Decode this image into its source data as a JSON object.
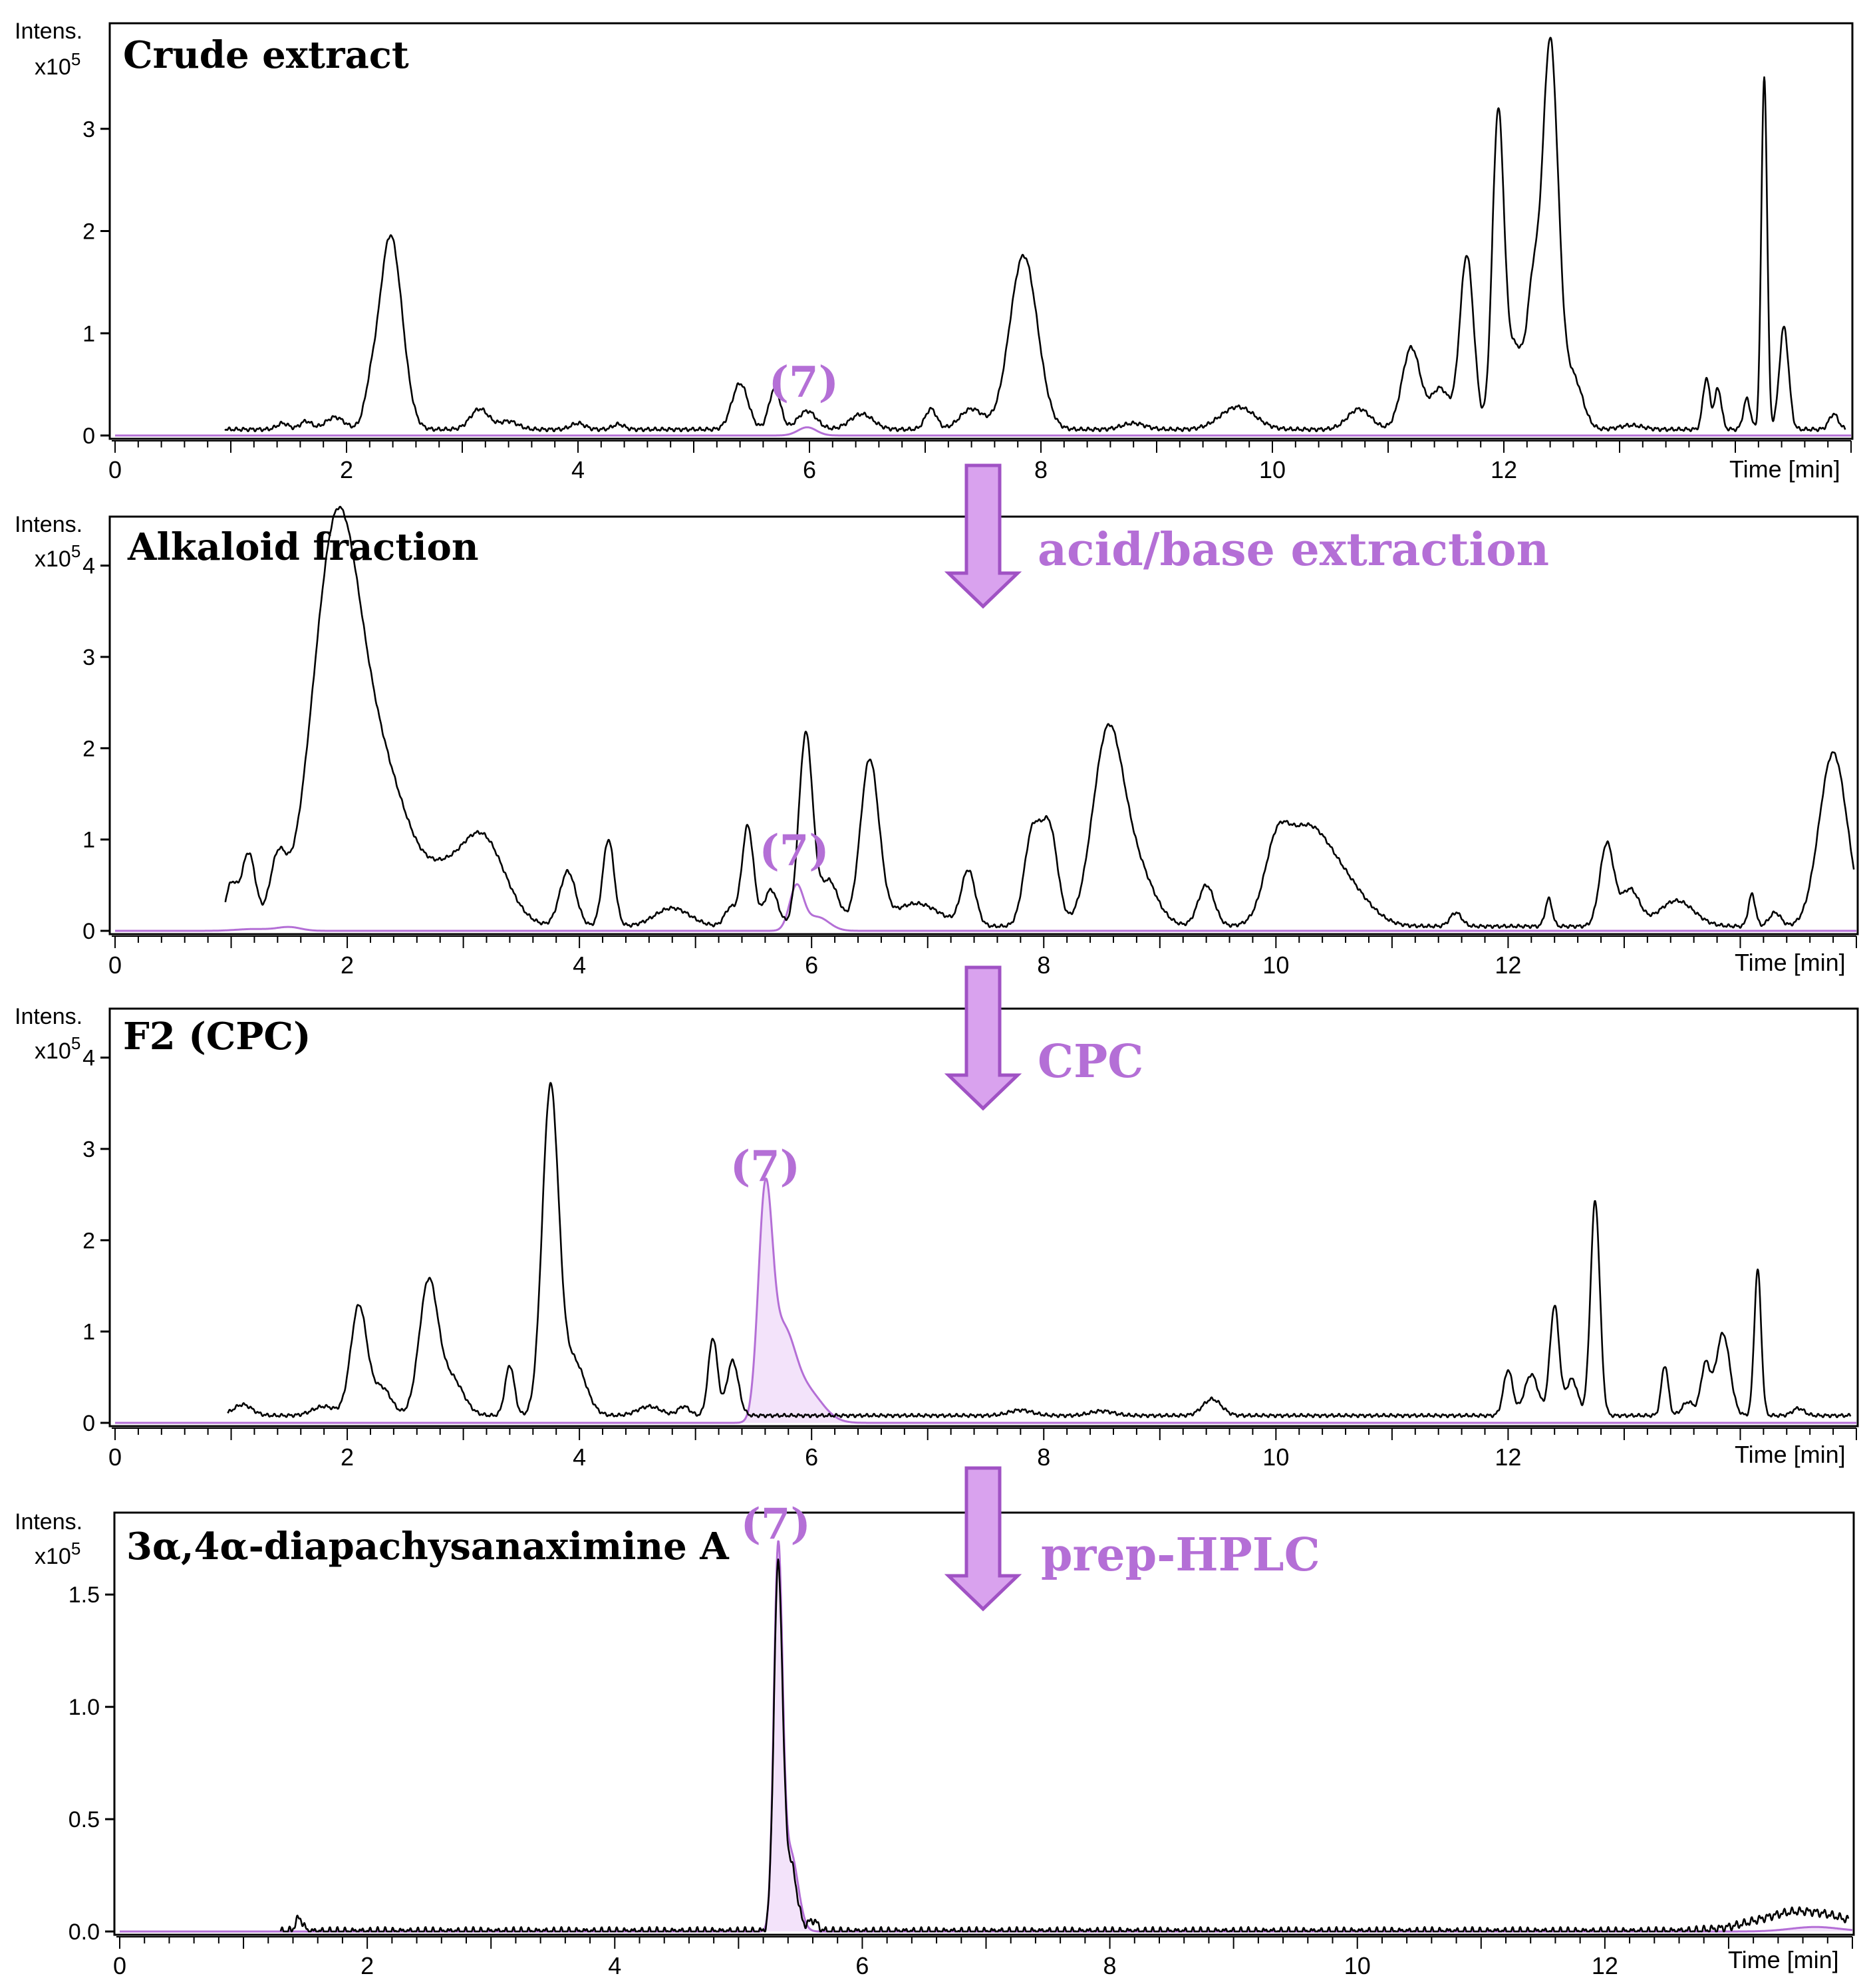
{
  "colors": {
    "trace": "#000000",
    "highlight": "#b46fd6",
    "highlight_fill": "#f3e3fa",
    "arrow_fill": "#d9a2ee",
    "arrow_stroke": "#a052c4"
  },
  "chart_data": [
    {
      "type": "line",
      "title": "Crude extract",
      "ylabel_line1": "Intens.",
      "ylabel_line2": "x10",
      "ylabel_exp": "5",
      "xlabel": "Time [min]",
      "xlim": [
        0,
        15
      ],
      "ylim": [
        0,
        4
      ],
      "x_ticks": [
        "0",
        "2",
        "4",
        "6",
        "8",
        "10",
        "12"
      ],
      "x_tick_values": [
        0,
        2,
        4,
        6,
        8,
        10,
        12
      ],
      "y_ticks": [
        "0",
        "1",
        "2",
        "3"
      ],
      "y_tick_values": [
        0,
        1,
        2,
        3
      ],
      "compound_label": "(7)",
      "compound_label_x": 5.95,
      "compound_label_y": 0.38,
      "series": [
        {
          "name": "total ion chromatogram",
          "color": "black",
          "fill": false,
          "baseline": 0.06,
          "x_start": 0.95,
          "x_end": 14.95,
          "peaks": [
            [
              1.45,
              0.06,
              0.05
            ],
            [
              1.65,
              0.08,
              0.05
            ],
            [
              1.9,
              0.12,
              0.08
            ],
            [
              2.2,
              0.2,
              0.05
            ],
            [
              2.38,
              1.9,
              0.1
            ],
            [
              3.15,
              0.2,
              0.08
            ],
            [
              3.4,
              0.08,
              0.08
            ],
            [
              4.0,
              0.06,
              0.06
            ],
            [
              4.35,
              0.05,
              0.05
            ],
            [
              5.4,
              0.45,
              0.07
            ],
            [
              5.7,
              0.4,
              0.05
            ],
            [
              5.98,
              0.18,
              0.08
            ],
            [
              6.45,
              0.15,
              0.1
            ],
            [
              7.05,
              0.2,
              0.05
            ],
            [
              7.4,
              0.2,
              0.1
            ],
            [
              7.85,
              1.7,
              0.12
            ],
            [
              8.8,
              0.06,
              0.1
            ],
            [
              9.7,
              0.22,
              0.15
            ],
            [
              10.75,
              0.2,
              0.1
            ],
            [
              11.2,
              0.8,
              0.08
            ],
            [
              11.45,
              0.4,
              0.08
            ],
            [
              11.68,
              1.7,
              0.06
            ],
            [
              11.95,
              3.0,
              0.05
            ],
            [
              12.1,
              0.8,
              0.08
            ],
            [
              12.25,
              1.1,
              0.05
            ],
            [
              12.4,
              3.8,
              0.07
            ],
            [
              12.6,
              0.5,
              0.08
            ],
            [
              13.1,
              0.04,
              0.1
            ],
            [
              13.75,
              0.5,
              0.03
            ],
            [
              13.85,
              0.4,
              0.03
            ],
            [
              14.1,
              0.3,
              0.03
            ],
            [
              14.25,
              3.45,
              0.025
            ],
            [
              14.42,
              1.0,
              0.04
            ],
            [
              14.85,
              0.15,
              0.04
            ]
          ]
        },
        {
          "name": "compound 7 EIC",
          "color": "purple",
          "fill": false,
          "baseline": 0.0,
          "x_start": 0.0,
          "x_end": 15.0,
          "peaks": [
            [
              5.98,
              0.08,
              0.08
            ]
          ]
        }
      ]
    },
    {
      "type": "line",
      "title": "Alkaloid fraction",
      "ylabel_line1": "Intens.",
      "ylabel_line2": "x10",
      "ylabel_exp": "5",
      "xlabel": "Time [min]",
      "xlim": [
        0,
        15
      ],
      "ylim": [
        0,
        4.5
      ],
      "x_ticks": [
        "0",
        "2",
        "4",
        "6",
        "8",
        "10",
        "12"
      ],
      "x_tick_values": [
        0,
        2,
        4,
        6,
        8,
        10,
        12
      ],
      "y_ticks": [
        "0",
        "1",
        "2",
        "3",
        "4"
      ],
      "y_tick_values": [
        0,
        1,
        2,
        3,
        4
      ],
      "compound_label": "(7)",
      "compound_label_x": 5.85,
      "compound_label_y": 0.72,
      "series": [
        {
          "name": "total ion chromatogram",
          "color": "black",
          "fill": false,
          "baseline": 0.05,
          "x_start": 0.95,
          "x_end": 14.98,
          "peaks": [
            [
              1.0,
              0.45,
              0.05
            ],
            [
              1.15,
              0.8,
              0.06
            ],
            [
              1.4,
              0.65,
              0.07
            ],
            [
              1.9,
              4.1,
              0.2
            ],
            [
              2.3,
              1.6,
              0.25
            ],
            [
              2.8,
              0.3,
              0.15
            ],
            [
              3.15,
              1.0,
              0.2
            ],
            [
              3.9,
              0.6,
              0.07
            ],
            [
              4.25,
              0.95,
              0.05
            ],
            [
              4.8,
              0.2,
              0.15
            ],
            [
              5.3,
              0.2,
              0.05
            ],
            [
              5.45,
              1.1,
              0.05
            ],
            [
              5.65,
              0.4,
              0.06
            ],
            [
              5.95,
              2.1,
              0.06
            ],
            [
              6.15,
              0.5,
              0.08
            ],
            [
              6.5,
              1.8,
              0.08
            ],
            [
              6.9,
              0.25,
              0.2
            ],
            [
              7.35,
              0.6,
              0.06
            ],
            [
              7.9,
              1.0,
              0.07
            ],
            [
              8.05,
              1.05,
              0.07
            ],
            [
              8.55,
              2.05,
              0.13
            ],
            [
              8.8,
              0.6,
              0.15
            ],
            [
              9.4,
              0.45,
              0.07
            ],
            [
              10.0,
              0.6,
              0.1
            ],
            [
              10.25,
              1.0,
              0.2
            ],
            [
              10.6,
              0.4,
              0.2
            ],
            [
              11.55,
              0.15,
              0.05
            ],
            [
              12.35,
              0.3,
              0.03
            ],
            [
              12.85,
              0.9,
              0.06
            ],
            [
              13.05,
              0.4,
              0.08
            ],
            [
              13.45,
              0.28,
              0.15
            ],
            [
              14.1,
              0.35,
              0.03
            ],
            [
              14.3,
              0.15,
              0.05
            ],
            [
              14.8,
              1.9,
              0.12
            ]
          ]
        },
        {
          "name": "compound 7 EIC",
          "color": "purple",
          "fill": false,
          "baseline": 0.0,
          "x_start": 0.0,
          "x_end": 15.0,
          "peaks": [
            [
              1.2,
              0.02,
              0.15
            ],
            [
              1.5,
              0.04,
              0.1
            ],
            [
              5.87,
              0.48,
              0.06
            ],
            [
              6.05,
              0.15,
              0.1
            ]
          ]
        }
      ]
    },
    {
      "type": "line",
      "title": "F2 (CPC)",
      "ylabel_line1": "Intens.",
      "ylabel_line2": "x10",
      "ylabel_exp": "5",
      "xlabel": "Time [min]",
      "xlim": [
        0,
        15
      ],
      "ylim": [
        0,
        4.5
      ],
      "x_ticks": [
        "0",
        "2",
        "4",
        "6",
        "8",
        "10",
        "12"
      ],
      "x_tick_values": [
        0,
        2,
        4,
        6,
        8,
        10,
        12
      ],
      "y_ticks": [
        "0",
        "1",
        "2",
        "3",
        "4"
      ],
      "y_tick_values": [
        0,
        1,
        2,
        3,
        4
      ],
      "compound_label": "(7)",
      "compound_label_x": 5.6,
      "compound_label_y": 2.65,
      "series": [
        {
          "name": "total ion chromatogram",
          "color": "black",
          "fill": false,
          "baseline": 0.08,
          "x_start": 0.97,
          "x_end": 14.95,
          "peaks": [
            [
              1.1,
              0.12,
              0.08
            ],
            [
              1.8,
              0.1,
              0.1
            ],
            [
              2.1,
              1.2,
              0.07
            ],
            [
              2.3,
              0.3,
              0.08
            ],
            [
              2.7,
              1.45,
              0.08
            ],
            [
              2.9,
              0.4,
              0.1
            ],
            [
              3.4,
              0.55,
              0.04
            ],
            [
              3.75,
              3.55,
              0.07
            ],
            [
              3.95,
              0.6,
              0.1
            ],
            [
              4.6,
              0.1,
              0.1
            ],
            [
              4.9,
              0.1,
              0.05
            ],
            [
              5.15,
              0.85,
              0.04
            ],
            [
              5.32,
              0.6,
              0.05
            ],
            [
              7.8,
              0.06,
              0.1
            ],
            [
              8.5,
              0.05,
              0.1
            ],
            [
              9.45,
              0.18,
              0.08
            ],
            [
              12.0,
              0.5,
              0.04
            ],
            [
              12.2,
              0.45,
              0.06
            ],
            [
              12.4,
              1.2,
              0.04
            ],
            [
              12.55,
              0.4,
              0.05
            ],
            [
              12.75,
              2.35,
              0.04
            ],
            [
              13.35,
              0.55,
              0.03
            ],
            [
              13.55,
              0.15,
              0.05
            ],
            [
              13.7,
              0.55,
              0.04
            ],
            [
              13.85,
              0.9,
              0.06
            ],
            [
              14.15,
              1.6,
              0.03
            ],
            [
              14.5,
              0.08,
              0.05
            ]
          ]
        },
        {
          "name": "compound 7 EIC",
          "color": "purple",
          "fill": true,
          "baseline": 0.0,
          "x_start": 0.0,
          "x_end": 15.0,
          "peaks": [
            [
              5.6,
              2.35,
              0.06
            ],
            [
              5.75,
              0.9,
              0.1
            ],
            [
              5.95,
              0.35,
              0.14
            ]
          ]
        }
      ]
    },
    {
      "type": "line",
      "title": "3α,4α-diapachysanaximine A",
      "ylabel_line1": "Intens.",
      "ylabel_line2": "x10",
      "ylabel_exp": "5",
      "xlabel": "Time [min]",
      "xlim": [
        0,
        14
      ],
      "ylim": [
        0,
        1.85
      ],
      "x_ticks": [
        "0",
        "2",
        "4",
        "6",
        "8",
        "10",
        "12"
      ],
      "x_tick_values": [
        0,
        2,
        4,
        6,
        8,
        10,
        12
      ],
      "y_ticks": [
        "0.0",
        "0.5",
        "1.0",
        "1.5"
      ],
      "y_tick_values": [
        0,
        0.5,
        1.0,
        1.5
      ],
      "compound_label": "(7)",
      "compound_label_x": 5.3,
      "compound_label_y": 1.75,
      "series": [
        {
          "name": "total ion chromatogram",
          "color": "black",
          "fill": false,
          "baseline": 0.0,
          "x_start": 1.3,
          "x_end": 13.97,
          "peaks": [
            [
              1.45,
              0.06,
              0.03
            ],
            [
              5.32,
              1.6,
              0.035
            ],
            [
              5.42,
              0.3,
              0.05
            ],
            [
              5.6,
              0.05,
              0.04
            ],
            [
              13.6,
              0.09,
              0.35
            ]
          ]
        },
        {
          "name": "compound 7 EIC",
          "color": "purple",
          "fill": true,
          "baseline": 0.0,
          "x_start": 0.0,
          "x_end": 14.0,
          "peaks": [
            [
              5.32,
              1.65,
              0.035
            ],
            [
              5.42,
              0.35,
              0.06
            ],
            [
              13.7,
              0.02,
              0.2
            ]
          ]
        }
      ]
    }
  ],
  "process_steps": [
    {
      "label": "acid/base extraction"
    },
    {
      "label": "CPC"
    },
    {
      "label": "prep-HPLC"
    }
  ]
}
